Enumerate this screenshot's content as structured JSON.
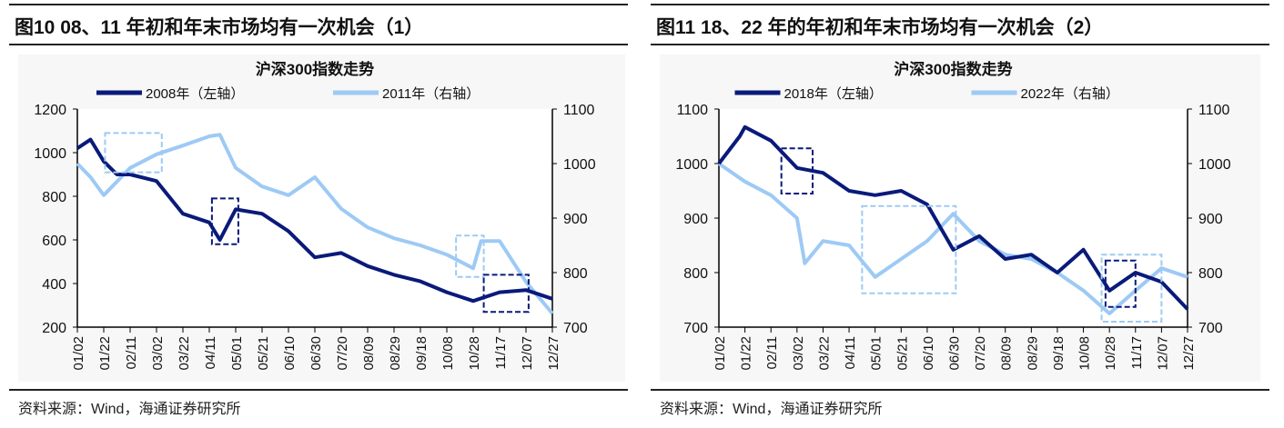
{
  "figures": [
    {
      "title": "图10 08、11 年初和年末市场均有一次机会（1）",
      "source": "资料来源：Wind，海通证券研究所"
    },
    {
      "title": "图11 18、22 年的年初和年末市场均有一次机会（2）",
      "source": "资料来源：Wind，海通证券研究所"
    }
  ],
  "chart_data": [
    {
      "type": "line",
      "title": "沪深300指数走势",
      "categories": [
        "01/02",
        "01/22",
        "02/11",
        "03/02",
        "03/22",
        "04/11",
        "05/01",
        "05/21",
        "06/10",
        "06/30",
        "07/20",
        "08/09",
        "08/29",
        "09/18",
        "10/08",
        "10/28",
        "11/17",
        "12/07",
        "12/27"
      ],
      "y_left": {
        "min": 200,
        "max": 1200,
        "ticks": [
          "200",
          "400",
          "600",
          "800",
          "1000",
          "1200"
        ]
      },
      "y_right": {
        "min": 700,
        "max": 1100,
        "ticks": [
          "700",
          "800",
          "900",
          "1000",
          "1100"
        ]
      },
      "series": [
        {
          "name": "2008年（左轴）",
          "axis": "left",
          "color": "#0a1a7a",
          "x": [
            0,
            0.5,
            1,
            1.5,
            2,
            3,
            4,
            5,
            5.4,
            6,
            7,
            8,
            9,
            10,
            11,
            12,
            13,
            14,
            15,
            16,
            17,
            18
          ],
          "values": [
            1020,
            1060,
            960,
            900,
            900,
            870,
            720,
            680,
            600,
            740,
            720,
            640,
            520,
            540,
            480,
            440,
            410,
            360,
            320,
            360,
            370,
            330
          ]
        },
        {
          "name": "2011年（右轴）",
          "axis": "right",
          "color": "#9dcaf5",
          "x": [
            0,
            0.5,
            1,
            2,
            3,
            4,
            5,
            5.4,
            6,
            7,
            8,
            9,
            10,
            11,
            12,
            13,
            14,
            15,
            15.3,
            16,
            17,
            18
          ],
          "values": [
            1000,
            975,
            942,
            992,
            1017,
            1033,
            1050,
            1053,
            992,
            958,
            942,
            975,
            917,
            883,
            863,
            850,
            833,
            808,
            858,
            858,
            783,
            725
          ]
        }
      ],
      "highlight_boxes": [
        {
          "color": "#9dcaf5",
          "x": [
            1.05,
            3.2
          ],
          "y_left": [
            910,
            1090
          ]
        },
        {
          "color": "#0a1a7a",
          "x": [
            5.1,
            6.1
          ],
          "y_left": [
            580,
            790
          ]
        },
        {
          "color": "#9dcaf5",
          "x": [
            14.35,
            15.4
          ],
          "y_left": [
            430,
            620
          ]
        },
        {
          "color": "#0a1a7a",
          "x": [
            15.4,
            17.1
          ],
          "y_left": [
            270,
            440
          ]
        }
      ]
    },
    {
      "type": "line",
      "title": "沪深300指数走势",
      "categories": [
        "01/02",
        "01/22",
        "02/11",
        "03/02",
        "03/22",
        "04/11",
        "05/01",
        "05/21",
        "06/10",
        "06/30",
        "07/20",
        "08/09",
        "08/29",
        "09/18",
        "10/08",
        "10/28",
        "11/17",
        "12/07",
        "12/27"
      ],
      "y_left": {
        "min": 700,
        "max": 1100,
        "ticks": [
          "700",
          "800",
          "900",
          "1000",
          "1100"
        ]
      },
      "y_right": {
        "min": 700,
        "max": 1100,
        "ticks": [
          "700",
          "800",
          "900",
          "1000",
          "1100"
        ]
      },
      "series": [
        {
          "name": "2018年（左轴）",
          "axis": "left",
          "color": "#0a1a7a",
          "x": [
            0,
            0.8,
            1,
            2,
            3,
            4,
            5,
            6,
            7,
            8,
            9,
            10,
            11,
            12,
            13,
            14,
            15,
            16,
            17,
            18
          ],
          "values": [
            1000,
            1050,
            1067,
            1042,
            992,
            983,
            950,
            942,
            950,
            925,
            842,
            867,
            825,
            833,
            800,
            842,
            767,
            800,
            783,
            733
          ]
        },
        {
          "name": "2022年（右轴）",
          "axis": "right",
          "color": "#9dcaf5",
          "x": [
            0,
            1,
            2,
            3,
            3.3,
            4,
            5,
            6,
            7,
            8,
            9,
            10,
            11,
            12,
            13,
            14,
            15,
            16,
            17,
            18
          ],
          "values": [
            1000,
            967,
            942,
            900,
            817,
            858,
            850,
            792,
            825,
            858,
            908,
            858,
            833,
            825,
            800,
            767,
            725,
            767,
            808,
            792
          ]
        }
      ],
      "highlight_boxes": [
        {
          "color": "#0a1a7a",
          "x": [
            2.4,
            3.6
          ],
          "y_left": [
            945,
            1028
          ]
        },
        {
          "color": "#9dcaf5",
          "x": [
            5.5,
            9.1
          ],
          "y_left": [
            762,
            922
          ]
        },
        {
          "color": "#0a1a7a",
          "x": [
            14.85,
            16.0
          ],
          "y_left": [
            737,
            822
          ]
        },
        {
          "color": "#9dcaf5",
          "x": [
            14.7,
            17.0
          ],
          "y_left": [
            710,
            833
          ]
        }
      ]
    }
  ]
}
